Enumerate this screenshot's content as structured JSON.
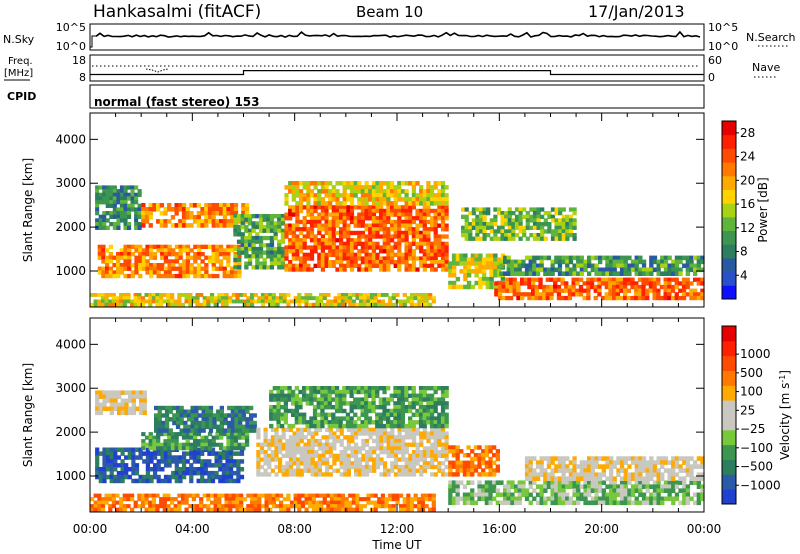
{
  "header": {
    "station": "Hankasalmi (fitACF)",
    "beam": "Beam 10",
    "date": "17/Jan/2013"
  },
  "top_panels": {
    "nsky": {
      "label": "N.Sky",
      "ticks": [
        "10^5",
        "10^0"
      ]
    },
    "nsearch": {
      "label": "N.Search",
      "ticks": [
        "10^5",
        "10^0"
      ]
    },
    "freq": {
      "label_line1": "Freq.",
      "label_line2": "[MHz]",
      "ticks": [
        "18",
        "8"
      ],
      "step_times_h": [
        0,
        6,
        18,
        24
      ],
      "step_values": [
        10.5,
        12,
        10.5
      ]
    },
    "nave": {
      "label": "Nave",
      "ticks": [
        "60",
        "0"
      ]
    },
    "cpid": {
      "label": "CPID",
      "mode_text": "normal (fast stereo) 153"
    }
  },
  "chart_data": [
    {
      "type": "heatmap",
      "title": "",
      "xlabel": "",
      "ylabel": "Slant Range [km]",
      "x_ticks": [
        "00:00",
        "04:00",
        "08:00",
        "12:00",
        "16:00",
        "20:00",
        "00:00"
      ],
      "y_ticks": [
        "1000",
        "2000",
        "3000",
        "4000"
      ],
      "xlim_hours": [
        0,
        24
      ],
      "ylim_km": [
        180,
        4600
      ],
      "colorbar": {
        "label": "Power [dB]",
        "ticks": [
          "4",
          "8",
          "12",
          "16",
          "20",
          "24",
          "28"
        ],
        "range": [
          0,
          30
        ],
        "colors": [
          "#1010ff",
          "#2850c8",
          "#285aa0",
          "#2d7d5f",
          "#3c9650",
          "#5fb43c",
          "#aad214",
          "#ffd200",
          "#ffaa00",
          "#ff7800",
          "#ff4b00",
          "#ff2000",
          "#e60000"
        ]
      },
      "bands": [
        {
          "t0": 0.3,
          "t1": 5.9,
          "r0": 850,
          "r1": 1600,
          "value": 22
        },
        {
          "t0": 0.2,
          "t1": 2.0,
          "r0": 1950,
          "r1": 2950,
          "value": 9
        },
        {
          "t0": 2.0,
          "t1": 6.2,
          "r0": 2000,
          "r1": 2550,
          "value": 22
        },
        {
          "t0": 5.6,
          "t1": 7.6,
          "r0": 1050,
          "r1": 2300,
          "value": 11
        },
        {
          "t0": 7.6,
          "t1": 14.0,
          "r0": 1000,
          "r1": 2500,
          "value": 24
        },
        {
          "t0": 7.6,
          "t1": 14.0,
          "r0": 2500,
          "r1": 3050,
          "value": 18
        },
        {
          "t0": 14.0,
          "t1": 16.2,
          "r0": 600,
          "r1": 1400,
          "value": 16
        },
        {
          "t0": 15.8,
          "t1": 24.0,
          "r0": 350,
          "r1": 850,
          "value": 24
        },
        {
          "t0": 16.0,
          "t1": 24.0,
          "r0": 900,
          "r1": 1350,
          "value": 10
        },
        {
          "t0": 14.5,
          "t1": 19.0,
          "r0": 1700,
          "r1": 2450,
          "value": 13
        },
        {
          "t0": 0.0,
          "t1": 13.5,
          "r0": 200,
          "r1": 500,
          "value": 17
        }
      ]
    },
    {
      "type": "heatmap",
      "title": "",
      "xlabel": "Time UT",
      "ylabel": "Slant Range [km]",
      "x_ticks": [
        "00:00",
        "04:00",
        "08:00",
        "12:00",
        "16:00",
        "20:00",
        "00:00"
      ],
      "y_ticks": [
        "1000",
        "2000",
        "3000",
        "4000"
      ],
      "xlim_hours": [
        0,
        24
      ],
      "ylim_km": [
        180,
        4600
      ],
      "colorbar": {
        "label": "Velocity [m s",
        "label_superscript": "-1",
        "label_close": "]",
        "ticks": [
          "1000",
          "500",
          "100",
          "25",
          "−25",
          "−100",
          "−500",
          "−1000"
        ],
        "colors": [
          "#2040d0",
          "#2a5aa8",
          "#2d7d5f",
          "#3c9650",
          "#78c83c",
          "#c8c8c0",
          "#c8c8c0",
          "#ffaa00",
          "#ff7800",
          "#ff4b00",
          "#ff2000",
          "#e60000"
        ]
      },
      "bands": [
        {
          "t0": 0.2,
          "t1": 6.0,
          "r0": 850,
          "r1": 1650,
          "value": 1
        },
        {
          "t0": 2.0,
          "t1": 6.2,
          "r0": 1600,
          "r1": 2000,
          "value": 3
        },
        {
          "t0": 0.2,
          "t1": 2.2,
          "r0": 2400,
          "r1": 2950,
          "value": 6
        },
        {
          "t0": 2.5,
          "t1": 6.5,
          "r0": 2000,
          "r1": 2600,
          "value": 2
        },
        {
          "t0": 6.5,
          "t1": 14.0,
          "r0": 1000,
          "r1": 2100,
          "value": 6
        },
        {
          "t0": 7.0,
          "t1": 14.0,
          "r0": 2100,
          "r1": 3050,
          "value": 3
        },
        {
          "t0": 14.0,
          "t1": 24.0,
          "r0": 350,
          "r1": 900,
          "value": 4
        },
        {
          "t0": 17.0,
          "t1": 24.0,
          "r0": 900,
          "r1": 1450,
          "value": 6
        },
        {
          "t0": 14.0,
          "t1": 16.0,
          "r0": 1000,
          "r1": 1700,
          "value": 8
        },
        {
          "t0": 0.0,
          "t1": 13.5,
          "r0": 200,
          "r1": 600,
          "value": 8
        }
      ]
    }
  ]
}
